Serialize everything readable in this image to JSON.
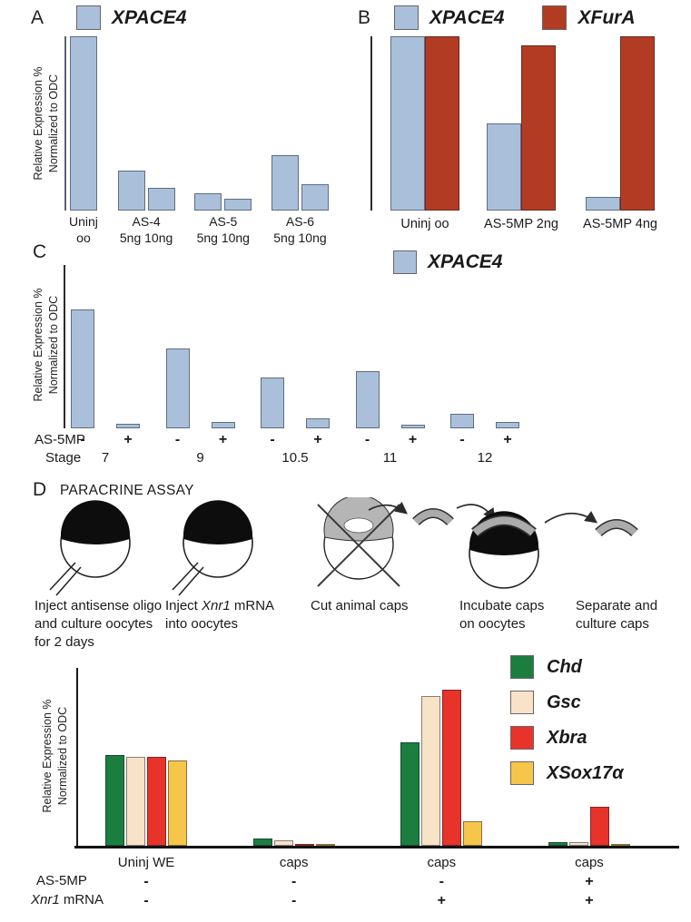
{
  "panels": {
    "a": {
      "label": "A",
      "ylabel": "Relative Expression %\nNormalized to ODC",
      "legend": [
        {
          "label": "XPACE4",
          "color": "#aabfda"
        }
      ]
    },
    "b": {
      "label": "B",
      "legend": [
        {
          "label": "XPACE4",
          "color": "#aabfda"
        },
        {
          "label": "XFurA",
          "color": "#b23c23"
        }
      ]
    },
    "c": {
      "label": "C",
      "ylabel": "Relative Expression %\nNormalized to ODC",
      "legend": [
        {
          "label": "XPACE4",
          "color": "#aabfda"
        }
      ],
      "row1_header": "AS-5MP",
      "row2_header": "Stage"
    },
    "d": {
      "label": "D",
      "title": "PARACRINE ASSAY",
      "steps": [
        {
          "text": "Inject antisense oligo\nand culture oocytes\nfor 2 days"
        },
        {
          "pre": "Inject ",
          "italic": "Xnr1",
          "post": " mRNA\ninto oocytes"
        },
        {
          "text": "Cut animal caps"
        },
        {
          "text": "Incubate caps\non oocytes"
        },
        {
          "text": "Separate and\nculture caps"
        }
      ],
      "legend": [
        {
          "label": "Chd",
          "color": "#1b7e3f"
        },
        {
          "label": "Gsc",
          "color": "#f8e3c9"
        },
        {
          "label": "Xbra",
          "color": "#e8332a"
        },
        {
          "label": "XSox17α",
          "color": "#f6c64a"
        }
      ],
      "ylabel": "Relative Expression %\nNormalized to ODC",
      "row1_header": "AS-5MP",
      "row2_header_italic": "Xnr1",
      "row2_header_rest": " mRNA"
    }
  },
  "chart_data": [
    {
      "id": "chartA",
      "type": "bar",
      "panel": "A",
      "title": "",
      "ylabel": "Relative Expression % Normalized to ODC",
      "xlabel": "",
      "ylim": [
        0,
        100
      ],
      "bar_color": "#aabfda",
      "legend": [
        "XPACE4"
      ],
      "groups": [
        {
          "label": "Uninj\noo",
          "values": [
            100
          ]
        },
        {
          "label": "AS-4\n5ng 10ng",
          "values": [
            23,
            13
          ]
        },
        {
          "label": "AS-5\n5ng 10ng",
          "values": [
            10,
            7
          ]
        },
        {
          "label": "AS-6\n5ng 10ng",
          "values": [
            32,
            15
          ]
        }
      ]
    },
    {
      "id": "chartB",
      "type": "bar",
      "panel": "B",
      "title": "",
      "ylim": [
        0,
        100
      ],
      "series": [
        {
          "name": "XPACE4",
          "color": "#aabfda"
        },
        {
          "name": "XFurA",
          "color": "#b23c23"
        }
      ],
      "groups": [
        {
          "label": "Uninj oo",
          "values": [
            100,
            100
          ]
        },
        {
          "label": "AS-5MP 2ng",
          "values": [
            50,
            95
          ]
        },
        {
          "label": "AS-5MP 4ng",
          "values": [
            8,
            100
          ]
        }
      ]
    },
    {
      "id": "chartC",
      "type": "bar",
      "panel": "C",
      "title": "",
      "ylabel": "Relative Expression % Normalized to ODC",
      "ylim": [
        0,
        100
      ],
      "bar_color": "#aabfda",
      "legend": [
        "XPACE4"
      ],
      "x_row_headers": [
        "AS-5MP",
        "Stage"
      ],
      "groups": [
        {
          "label": "7",
          "sub": [
            "-",
            "+"
          ],
          "values": [
            73,
            3
          ]
        },
        {
          "label": "9",
          "sub": [
            "-",
            "+"
          ],
          "values": [
            49,
            4
          ]
        },
        {
          "label": "10.5",
          "sub": [
            "-",
            "+"
          ],
          "values": [
            31,
            6
          ]
        },
        {
          "label": "11",
          "sub": [
            "-",
            "+"
          ],
          "values": [
            35,
            2
          ]
        },
        {
          "label": "12",
          "sub": [
            "-",
            "+"
          ],
          "values": [
            9,
            4
          ]
        }
      ]
    },
    {
      "id": "chartD",
      "type": "bar",
      "panel": "D",
      "title": "",
      "ylabel": "Relative Expression % Normalized to ODC",
      "ylim": [
        0,
        100
      ],
      "series": [
        {
          "name": "Chd",
          "color": "#1b7e3f"
        },
        {
          "name": "Gsc",
          "color": "#f8e3c9"
        },
        {
          "name": "Xbra",
          "color": "#e8332a"
        },
        {
          "name": "XSox17α",
          "color": "#f6c64a"
        }
      ],
      "x_row_headers": [
        "AS-5MP",
        "Xnr1 mRNA"
      ],
      "groups": [
        {
          "label": "Uninj WE",
          "sub1": "-",
          "sub2": "-",
          "values": [
            51,
            50,
            50,
            48
          ]
        },
        {
          "label": "caps",
          "sub1": "-",
          "sub2": "-",
          "values": [
            4,
            3,
            1,
            1
          ]
        },
        {
          "label": "caps",
          "sub1": "-",
          "sub2": "+",
          "values": [
            58,
            84,
            88,
            14
          ]
        },
        {
          "label": "caps",
          "sub1": "+",
          "sub2": "+",
          "values": [
            2,
            2,
            22,
            1
          ]
        }
      ]
    }
  ]
}
